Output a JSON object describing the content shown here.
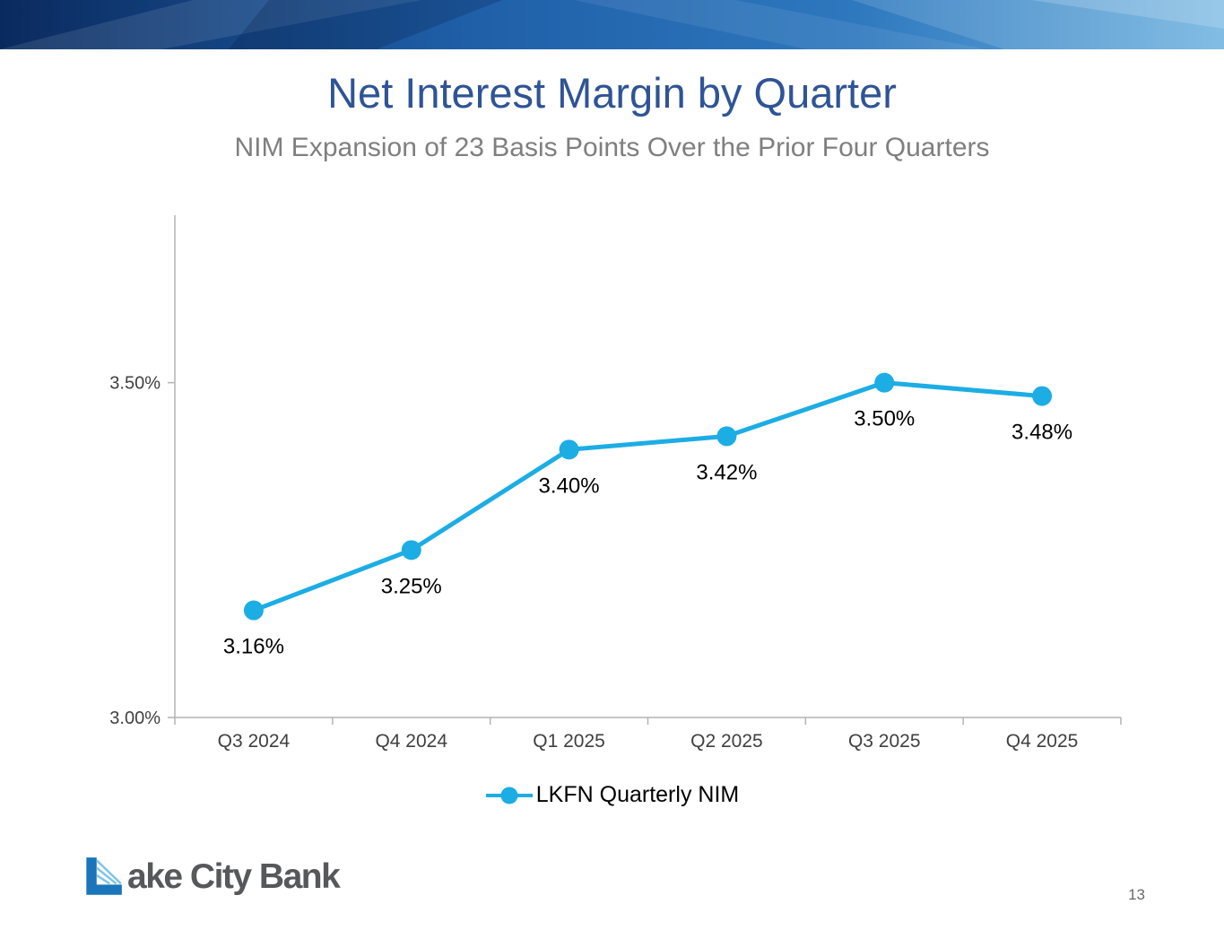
{
  "theme": {
    "title_color": "#2F5496",
    "subtitle_color": "#7F7F7F",
    "accent": "#1CADE4",
    "axis_color": "#B3B3B3",
    "tick_text_color": "#404040",
    "banner_dark": "#0A2A5E",
    "banner_mid": "#1F5FA8",
    "banner_light": "#6FB3E0",
    "logo_blue": "#1B75BB",
    "logo_cable_blue": "#7FC4E8",
    "logo_text_color": "#57585A",
    "page_number_color": "#6A6A6A"
  },
  "header": {
    "title": "Net Interest Margin by Quarter",
    "subtitle": "NIM Expansion of 23 Basis Points Over the Prior Four Quarters"
  },
  "footer": {
    "logo_icon": "bridge-emblem-icon",
    "logo_text": "ake City Bank",
    "page_number": "13"
  },
  "chart_data": {
    "type": "line",
    "title": "",
    "xlabel": "",
    "ylabel": "",
    "grid": false,
    "categories": [
      "Q3 2024",
      "Q4 2024",
      "Q1 2025",
      "Q2 2025",
      "Q3 2025",
      "Q4 2025"
    ],
    "series": [
      {
        "name": "LKFN Quarterly NIM",
        "values": [
          3.16,
          3.25,
          3.4,
          3.42,
          3.5,
          3.48
        ],
        "labels": [
          "3.16%",
          "3.25%",
          "3.40%",
          "3.42%",
          "3.50%",
          "3.48%"
        ],
        "color": "#1CADE4"
      }
    ],
    "ylim": [
      3.0,
      3.75
    ],
    "yticks": [
      {
        "value": 3.0,
        "label": "3.00%"
      },
      {
        "value": 3.5,
        "label": "3.50%"
      }
    ],
    "legend": {
      "position": "bottom"
    }
  }
}
